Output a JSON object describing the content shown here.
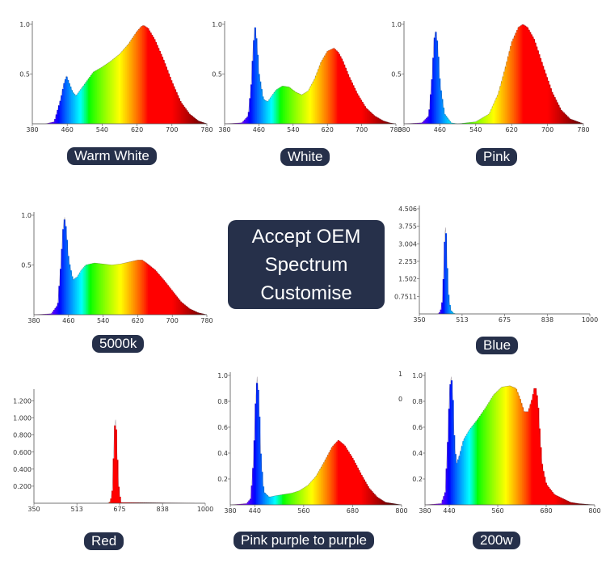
{
  "headline": {
    "lines": [
      "Accept OEM",
      "Spectrum",
      "Customise"
    ]
  },
  "stray_labels": [
    "1",
    "0"
  ],
  "colors": {
    "label_bg": "#26304a",
    "label_text": "#ffffff",
    "axis": "#555555"
  },
  "chart_data": [
    {
      "type": "area",
      "label": "Warm White",
      "xlim": [
        380,
        780
      ],
      "ylim": [
        0,
        1.0
      ],
      "x_ticks": [
        "380",
        "460",
        "540",
        "620",
        "700",
        "780"
      ],
      "y_ticks": [
        "0.5",
        "1.0"
      ],
      "x": [
        380,
        410,
        430,
        445,
        452,
        458,
        465,
        472,
        480,
        500,
        520,
        540,
        560,
        580,
        600,
        620,
        630,
        635,
        645,
        660,
        680,
        700,
        720,
        740,
        760,
        780
      ],
      "values": [
        0,
        0,
        0.02,
        0.25,
        0.4,
        0.48,
        0.4,
        0.32,
        0.28,
        0.4,
        0.52,
        0.57,
        0.63,
        0.7,
        0.8,
        0.93,
        0.98,
        0.99,
        0.96,
        0.85,
        0.65,
        0.42,
        0.22,
        0.1,
        0.03,
        0
      ]
    },
    {
      "type": "area",
      "label": "White",
      "xlim": [
        380,
        780
      ],
      "ylim": [
        0,
        1.0
      ],
      "x_ticks": [
        "380",
        "460",
        "540",
        "620",
        "700",
        "780"
      ],
      "y_ticks": [
        "0.5",
        "1.0"
      ],
      "x": [
        380,
        420,
        435,
        442,
        447,
        451,
        455,
        460,
        470,
        480,
        490,
        500,
        515,
        530,
        545,
        560,
        575,
        590,
        605,
        620,
        635,
        645,
        655,
        670,
        690,
        710,
        730,
        750,
        765,
        780
      ],
      "values": [
        0,
        0.01,
        0.08,
        0.4,
        0.8,
        0.97,
        0.82,
        0.5,
        0.25,
        0.22,
        0.28,
        0.34,
        0.38,
        0.37,
        0.32,
        0.29,
        0.33,
        0.45,
        0.62,
        0.73,
        0.76,
        0.72,
        0.64,
        0.48,
        0.3,
        0.16,
        0.08,
        0.03,
        0.01,
        0
      ]
    },
    {
      "type": "area",
      "label": "Pink",
      "xlim": [
        380,
        780
      ],
      "ylim": [
        0,
        1.0
      ],
      "x_ticks": [
        "380",
        "460",
        "540",
        "620",
        "700",
        "780"
      ],
      "y_ticks": [
        "0.5",
        "1.0"
      ],
      "x": [
        380,
        420,
        435,
        443,
        447,
        451,
        455,
        460,
        470,
        485,
        500,
        540,
        570,
        590,
        605,
        620,
        635,
        645,
        655,
        670,
        690,
        710,
        730,
        750,
        780
      ],
      "values": [
        0,
        0.01,
        0.08,
        0.5,
        0.85,
        0.93,
        0.78,
        0.4,
        0.1,
        0.01,
        0,
        0.02,
        0.1,
        0.3,
        0.55,
        0.82,
        0.97,
        1.0,
        0.97,
        0.85,
        0.58,
        0.32,
        0.14,
        0.05,
        0
      ]
    },
    {
      "type": "area",
      "label": "5000k",
      "xlim": [
        380,
        780
      ],
      "ylim": [
        0,
        1.0
      ],
      "x_ticks": [
        "380",
        "460",
        "540",
        "620",
        "700",
        "780"
      ],
      "y_ticks": [
        "0.5",
        "1.0"
      ],
      "x": [
        380,
        420,
        435,
        442,
        447,
        451,
        455,
        460,
        470,
        480,
        490,
        500,
        520,
        540,
        560,
        580,
        600,
        620,
        630,
        640,
        660,
        680,
        700,
        720,
        740,
        760,
        780
      ],
      "values": [
        0,
        0.01,
        0.1,
        0.5,
        0.85,
        0.98,
        0.82,
        0.55,
        0.35,
        0.38,
        0.45,
        0.5,
        0.52,
        0.51,
        0.5,
        0.51,
        0.53,
        0.55,
        0.55,
        0.52,
        0.45,
        0.35,
        0.24,
        0.13,
        0.06,
        0.02,
        0
      ]
    },
    {
      "type": "area",
      "label": "Blue",
      "xlim": [
        350,
        1000
      ],
      "ylim": [
        0,
        4.506
      ],
      "x_ticks": [
        "350",
        "513",
        "675",
        "838",
        "1000"
      ],
      "y_ticks": [
        "0.7511",
        "1.502",
        "2.253",
        "3.004",
        "3.755",
        "4.506"
      ],
      "x": [
        350,
        420,
        430,
        438,
        443,
        447,
        450,
        453,
        457,
        462,
        470,
        480,
        490,
        1000
      ],
      "values": [
        0,
        0,
        0.1,
        0.6,
        2.0,
        3.4,
        3.7,
        3.0,
        1.6,
        0.6,
        0.15,
        0.03,
        0,
        0
      ]
    },
    {
      "type": "area",
      "label": "Red",
      "xlim": [
        350,
        1000
      ],
      "ylim": [
        0,
        1.3
      ],
      "x_ticks": [
        "350",
        "513",
        "675",
        "838",
        "1000"
      ],
      "y_ticks": [
        "0.200",
        "0.400",
        "0.600",
        "0.800",
        "1.000",
        "1.200"
      ],
      "x": [
        350,
        630,
        640,
        647,
        652,
        656,
        660,
        665,
        672,
        680,
        1000
      ],
      "values": [
        0,
        0,
        0.02,
        0.15,
        0.55,
        0.9,
        0.98,
        0.6,
        0.15,
        0.01,
        0
      ]
    },
    {
      "type": "area",
      "label": "Pink purple to purple",
      "xlim": [
        380,
        800
      ],
      "ylim": [
        0,
        1.0
      ],
      "x_ticks": [
        "380",
        "440",
        "560",
        "680",
        "800"
      ],
      "y_ticks": [
        "0.2",
        "0.4",
        "0.6",
        "0.8",
        "1.0"
      ],
      "x": [
        380,
        420,
        430,
        437,
        442,
        446,
        450,
        455,
        462,
        475,
        490,
        510,
        530,
        550,
        570,
        590,
        610,
        630,
        645,
        660,
        680,
        700,
        720,
        740,
        760,
        780,
        800
      ],
      "values": [
        0,
        0.01,
        0.05,
        0.35,
        0.8,
        0.99,
        0.8,
        0.35,
        0.1,
        0.06,
        0.07,
        0.08,
        0.09,
        0.11,
        0.15,
        0.22,
        0.33,
        0.45,
        0.5,
        0.46,
        0.36,
        0.24,
        0.13,
        0.06,
        0.02,
        0.01,
        0
      ]
    },
    {
      "type": "area",
      "label": "200w",
      "xlim": [
        380,
        800
      ],
      "ylim": [
        0,
        1.0
      ],
      "x_ticks": [
        "380",
        "440",
        "560",
        "680",
        "800"
      ],
      "y_ticks": [
        "0.2",
        "0.4",
        "0.6",
        "0.8",
        "1.0"
      ],
      "x": [
        380,
        420,
        430,
        437,
        441,
        445,
        449,
        453,
        458,
        465,
        475,
        490,
        510,
        530,
        550,
        570,
        590,
        605,
        615,
        625,
        635,
        645,
        650,
        655,
        660,
        665,
        670,
        680,
        700,
        720,
        740,
        760,
        800
      ],
      "values": [
        0,
        0.01,
        0.1,
        0.55,
        0.9,
        0.99,
        0.8,
        0.45,
        0.32,
        0.38,
        0.5,
        0.58,
        0.66,
        0.75,
        0.85,
        0.91,
        0.92,
        0.9,
        0.82,
        0.72,
        0.72,
        0.82,
        0.9,
        0.9,
        0.75,
        0.5,
        0.3,
        0.16,
        0.08,
        0.05,
        0.02,
        0.01,
        0
      ]
    }
  ]
}
